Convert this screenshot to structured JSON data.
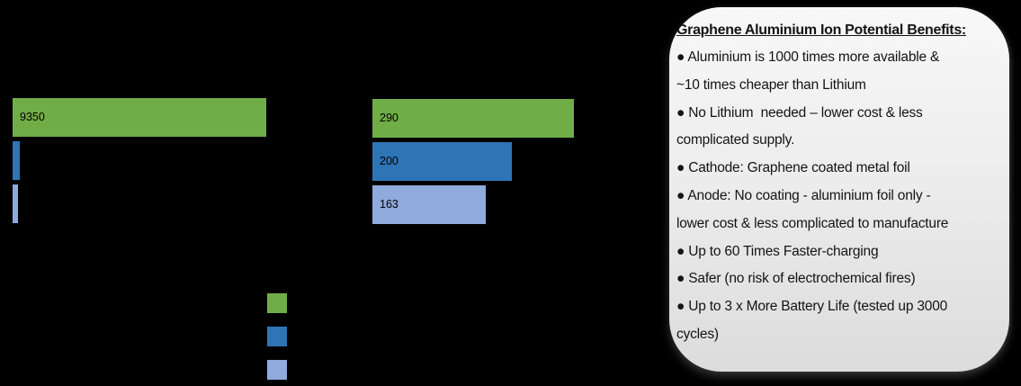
{
  "canvas": {
    "background_color": "#000000"
  },
  "chart_data": [
    {
      "type": "bar",
      "orientation": "horizontal",
      "title": "",
      "xlabel": "",
      "ylabel": "",
      "xlim": [
        0,
        9350
      ],
      "grid": false,
      "bars": [
        {
          "value": 9350,
          "label": "9350",
          "color": "#70AD47",
          "estimated": false
        },
        {
          "value": 250,
          "label": "",
          "color": "#2E75B6",
          "estimated": true
        },
        {
          "value": 210,
          "label": "",
          "color": "#8FAADC",
          "estimated": true
        }
      ]
    },
    {
      "type": "bar",
      "orientation": "horizontal",
      "title": "",
      "xlabel": "",
      "ylabel": "",
      "xlim": [
        0,
        290
      ],
      "grid": false,
      "bars": [
        {
          "value": 290,
          "label": "290",
          "color": "#70AD47",
          "estimated": false
        },
        {
          "value": 200,
          "label": "200",
          "color": "#2E75B6",
          "estimated": false
        },
        {
          "value": 163,
          "label": "163",
          "color": "#8FAADC",
          "estimated": false
        }
      ]
    }
  ],
  "legend": {
    "position": "bottom-center",
    "swatch_colors": [
      "#70AD47",
      "#2E75B6",
      "#8FAADC"
    ],
    "labels": [
      "",
      "",
      ""
    ]
  },
  "benefits_box": {
    "title": "Graphene Aluminium Ion Potential Benefits:",
    "body_lines": [
      "● Aluminium is 1000 times more available &",
      "~10 times cheaper than Lithium",
      "● No Lithium  needed – lower cost & less",
      "complicated supply.",
      "● Cathode: Graphene coated metal foil",
      "● Anode: No coating - aluminium foil only -",
      "lower cost & less complicated to manufacture",
      "● Up to 60 Times Faster-charging",
      "● Safer (no risk of electrochemical fires)",
      "● Up to 3 x More Battery Life (tested up 3000",
      "cycles)"
    ]
  }
}
